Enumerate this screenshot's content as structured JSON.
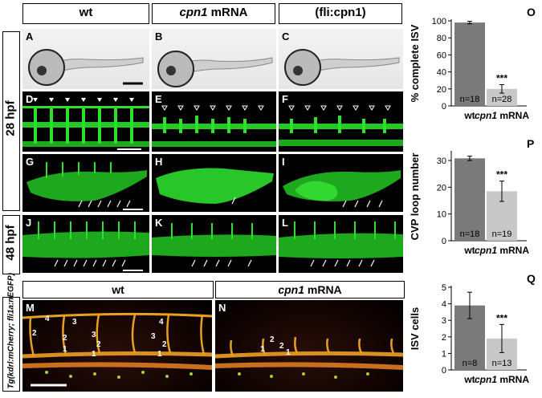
{
  "headers": {
    "wt": "wt",
    "cpn1_mrna_italic": "cpn1",
    "cpn1_mrna_rest": " mRNA",
    "fli_cpn1": "(fli:cpn1)"
  },
  "stages": {
    "h28": "28 hpf",
    "h48": "48 hpf"
  },
  "panel_labels": [
    "A",
    "B",
    "C",
    "D",
    "E",
    "F",
    "G",
    "H",
    "I",
    "J",
    "K",
    "L",
    "M",
    "N"
  ],
  "bottom": {
    "wt": "wt",
    "cpn1_italic": "cpn1",
    "cpn1_rest": " mRNA",
    "transgene": "Tg(kdrl:mCherry; fli1a:nEGFP)",
    "m_numbers": [
      "3",
      "4",
      "3",
      "2",
      "3",
      "2",
      "1",
      "1",
      "1",
      "2",
      "2",
      "4"
    ],
    "n_numbers": [
      "2",
      "1",
      "2",
      "1"
    ]
  },
  "chart_data": [
    {
      "panel": "O",
      "type": "bar",
      "categories": [
        "wt",
        "cpn1 mRNA"
      ],
      "values": [
        98,
        20
      ],
      "errors": [
        1.5,
        5
      ],
      "n_labels": [
        "n=18",
        "n=28"
      ],
      "significance": [
        "",
        "***"
      ],
      "ylabel": "% complete ISV",
      "ylim": [
        0,
        100
      ],
      "yticks": [
        0,
        20,
        40,
        60,
        80,
        100
      ],
      "colors": [
        "#7a7a7a",
        "#c8c8c8"
      ]
    },
    {
      "panel": "P",
      "type": "bar",
      "categories": [
        "wt",
        "cpn1 mRNA"
      ],
      "values": [
        30.8,
        18.5
      ],
      "errors": [
        0.8,
        3.8
      ],
      "n_labels": [
        "n=18",
        "n=19"
      ],
      "significance": [
        "",
        "***"
      ],
      "ylabel": "CVP loop number",
      "ylim": [
        0,
        33
      ],
      "yticks": [
        0,
        10,
        20,
        30
      ],
      "colors": [
        "#7a7a7a",
        "#c8c8c8"
      ]
    },
    {
      "panel": "Q",
      "type": "bar",
      "categories": [
        "wt",
        "cpn1 mRNA"
      ],
      "values": [
        3.9,
        1.9
      ],
      "errors": [
        0.8,
        0.85
      ],
      "n_labels": [
        "n=8",
        "n=13"
      ],
      "significance": [
        "",
        "***"
      ],
      "ylabel": "ISV cells",
      "ylim": [
        0,
        5
      ],
      "yticks": [
        0,
        1,
        2,
        3,
        4,
        5
      ],
      "colors": [
        "#7a7a7a",
        "#c8c8c8"
      ]
    }
  ]
}
